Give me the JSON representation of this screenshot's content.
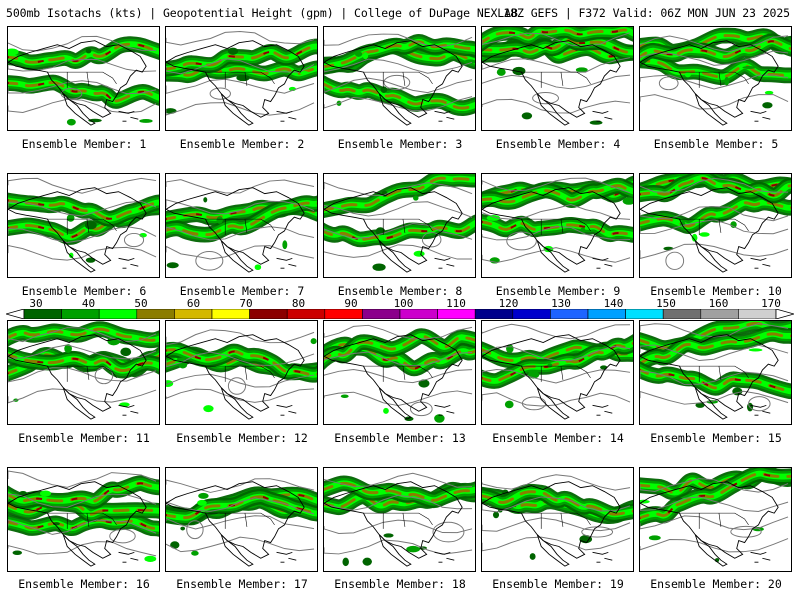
{
  "header": {
    "left": "500mb Isotachs (kts) | Geopotential Height (gpm) | College of DuPage NEXLAB",
    "right": "18Z GEFS | F372 Valid: 06Z MON JUN 23 2025"
  },
  "colorbar": {
    "ticks": [
      "30",
      "40",
      "50",
      "60",
      "70",
      "80",
      "90",
      "100",
      "110",
      "120",
      "130",
      "140",
      "150",
      "160",
      "170"
    ],
    "colors": [
      "#006400",
      "#00a000",
      "#00ff00",
      "#8b7d00",
      "#d4b800",
      "#ffff00",
      "#8b0000",
      "#cc0000",
      "#ff0000",
      "#8b008b",
      "#cc00cc",
      "#ff00ff",
      "#00008b",
      "#0000cc",
      "#1e64ff",
      "#00a0ff",
      "#00e0ff",
      "#707070",
      "#a0a0a0",
      "#d0d0d0"
    ]
  },
  "members": [
    {
      "label": "Ensemble Member: 1"
    },
    {
      "label": "Ensemble Member: 2"
    },
    {
      "label": "Ensemble Member: 3"
    },
    {
      "label": "Ensemble Member: 4"
    },
    {
      "label": "Ensemble Member: 5"
    },
    {
      "label": "Ensemble Member: 6"
    },
    {
      "label": "Ensemble Member: 7"
    },
    {
      "label": "Ensemble Member: 8"
    },
    {
      "label": "Ensemble Member: 9"
    },
    {
      "label": "Ensemble Member: 10"
    },
    {
      "label": "Ensemble Member: 11"
    },
    {
      "label": "Ensemble Member: 12"
    },
    {
      "label": "Ensemble Member: 13"
    },
    {
      "label": "Ensemble Member: 14"
    },
    {
      "label": "Ensemble Member: 15"
    },
    {
      "label": "Ensemble Member: 16"
    },
    {
      "label": "Ensemble Member: 17"
    },
    {
      "label": "Ensemble Member: 18"
    },
    {
      "label": "Ensemble Member: 19"
    },
    {
      "label": "Ensemble Member: 20"
    }
  ]
}
